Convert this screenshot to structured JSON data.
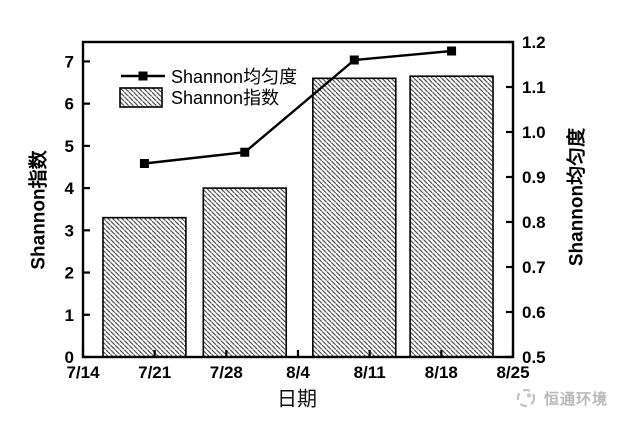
{
  "figure": {
    "background": "#ffffff",
    "frame_color": "#000000",
    "hatch_color": "#3f3f3f"
  },
  "watermark": {
    "text": "恒通环境",
    "color": "#b9b9b9",
    "logo_icon": "dashed-circle-logo"
  },
  "chart_data": {
    "type": "bar",
    "title": "",
    "xlabel": "日期",
    "ylabel_left": "Shannon指数",
    "ylabel_right": "Shannon均匀度",
    "x_axis": {
      "tick_labels": [
        "7/14",
        "7/21",
        "7/28",
        "8/4",
        "8/11",
        "8/18",
        "8/25"
      ],
      "tick_days": [
        0,
        7,
        14,
        21,
        28,
        35,
        42
      ],
      "range_days": [
        0,
        42
      ]
    },
    "y_left": {
      "ticks": [
        0,
        1,
        2,
        3,
        4,
        5,
        6,
        7
      ],
      "range": [
        0,
        7.46
      ]
    },
    "y_right": {
      "ticks": [
        0.5,
        0.6,
        0.7,
        0.8,
        0.9,
        1.0,
        1.1,
        1.2
      ],
      "range": [
        0.5,
        1.2
      ]
    },
    "grid": false,
    "legend": {
      "position": "top-left-inside",
      "entries": [
        "Shannon均匀度",
        "Shannon指数"
      ]
    },
    "series": [
      {
        "name": "Shannon指数",
        "type": "bar",
        "axis": "left",
        "x_days": [
          6,
          15.8,
          26.5,
          36
        ],
        "approx_dates": [
          "7/20",
          "7/30",
          "8/10",
          "8/19"
        ],
        "values": [
          3.3,
          4.0,
          6.6,
          6.65
        ],
        "bar_width_days": 8.1,
        "fill": "diagonal-backslash-hatch",
        "edge_color": "#000000"
      },
      {
        "name": "Shannon均匀度",
        "type": "line",
        "axis": "right",
        "x_days": [
          6,
          15.8,
          26.5,
          36
        ],
        "approx_dates": [
          "7/20",
          "7/30",
          "8/10",
          "8/19"
        ],
        "values": [
          0.93,
          0.955,
          1.16,
          1.18
        ],
        "marker": "filled-square",
        "color": "#000000"
      }
    ]
  }
}
